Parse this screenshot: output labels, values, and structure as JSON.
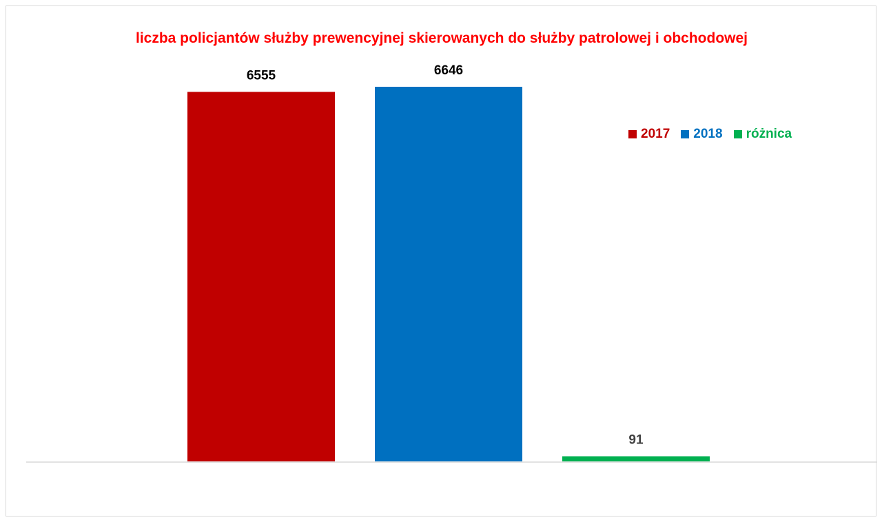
{
  "chart_data": {
    "type": "bar",
    "title": "liczba policjantów służby prewencyjnej skierowanych do służby patrolowej i obchodowej",
    "categories": [
      "2017",
      "2018",
      "różnica"
    ],
    "values": [
      6555,
      6646,
      91
    ],
    "colors": [
      "#c00000",
      "#0070c0",
      "#00b050"
    ],
    "label_colors": [
      "#000000",
      "#000000",
      "#404040"
    ],
    "legend": [
      {
        "label": "2017",
        "color": "#c00000"
      },
      {
        "label": "2018",
        "color": "#0070c0"
      },
      {
        "label": "różnica",
        "color": "#00b050"
      }
    ],
    "legend_position": "top-right",
    "ylim": [
      0,
      6646
    ],
    "grid": false,
    "xlabel": "",
    "ylabel": ""
  }
}
